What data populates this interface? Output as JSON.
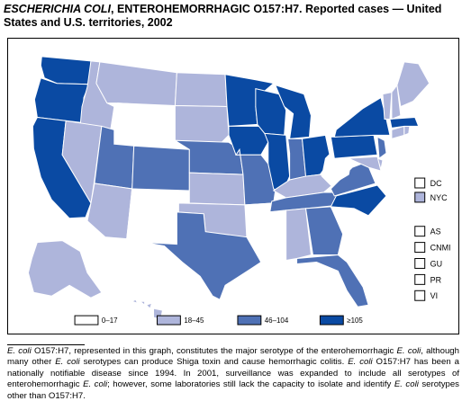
{
  "title": {
    "organism_italic": "ESCHERICHIA COLI",
    "rest": ", ENTEROHEMORRHAGIC O157:H7. Reported cases — United States and U.S. territories, 2002"
  },
  "colors": {
    "0-17": "#ffffff",
    "18-45": "#aeb5db",
    "46-104": "#4f71b5",
    ">=105": "#0a4aa3",
    "outline": "#000000"
  },
  "legend": [
    {
      "label": "0–17",
      "class": "0-17"
    },
    {
      "label": "18–45",
      "class": "18-45"
    },
    {
      "label": "46–104",
      "class": "46-104"
    },
    {
      "label": "≥105",
      "class": ">=105"
    }
  ],
  "territories": [
    {
      "label": "DC",
      "class": "0-17"
    },
    {
      "label": "NYC",
      "class": "18-45"
    },
    {
      "label": "AS",
      "class": "0-17"
    },
    {
      "label": "CNMI",
      "class": "0-17"
    },
    {
      "label": "GU",
      "class": "0-17"
    },
    {
      "label": "PR",
      "class": "0-17"
    },
    {
      "label": "VI",
      "class": "0-17"
    }
  ],
  "states": {
    "WA": ">=105",
    "OR": ">=105",
    "CA": ">=105",
    "ID": "18-45",
    "NV": "18-45",
    "MT": "18-45",
    "WY": "0-17",
    "UT": "46-104",
    "AZ": "18-45",
    "CO": "46-104",
    "NM": "0-17",
    "ND": "18-45",
    "SD": "18-45",
    "NE": "46-104",
    "KS": "18-45",
    "OK": "18-45",
    "TX": "46-104",
    "MN": ">=105",
    "IA": ">=105",
    "MO": "46-104",
    "AR": "0-17",
    "LA": "0-17",
    "WI": ">=105",
    "IL": ">=105",
    "MI": ">=105",
    "IN": "46-104",
    "OH": ">=105",
    "KY": "18-45",
    "TN": "46-104",
    "MS": "0-17",
    "AL": "18-45",
    "GA": "46-104",
    "FL": "46-104",
    "SC": "0-17",
    "NC": ">=105",
    "VA": "46-104",
    "WV": "0-17",
    "PA": ">=105",
    "NY": ">=105",
    "NJ": "46-104",
    "DE": "18-45",
    "MD": "18-45",
    "CT": "18-45",
    "RI": "18-45",
    "MA": ">=105",
    "VT": "18-45",
    "NH": "18-45",
    "ME": "18-45",
    "AK": "18-45",
    "HI": "18-45"
  },
  "footnote": {
    "p1_italic": "E. coli",
    "p1": " O157:H7, represented in this graph, constitutes the major serotype of the enterohemorrhagic ",
    "p2_italic": "E. coli",
    "p2": ", although many other ",
    "p3_italic": "E. coli",
    "p3": " serotypes can produce Shiga toxin and cause hemorrhagic colitis. ",
    "p4_italic": "E. coli",
    "p4": " O157:H7 has been a nationally notifiable disease since 1994. In 2001, surveillance was expanded to include all serotypes of enterohemorrhagic ",
    "p5_italic": "E. coli",
    "p5": "; however, some laboratories still lack the capacity to isolate and identify ",
    "p6_italic": "E. coli",
    "p6": " serotypes other than O157:H7."
  }
}
